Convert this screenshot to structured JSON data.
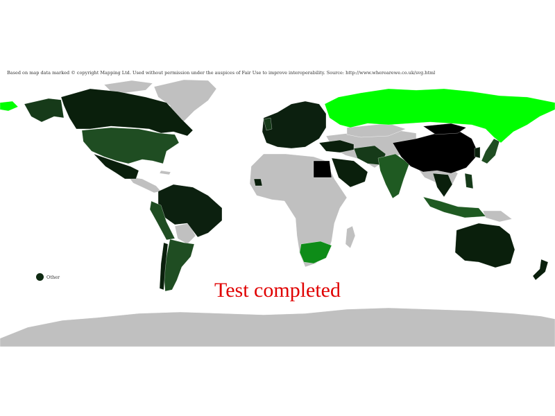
{
  "attribution": "Based on map data marked © copyright Mapping Ltd. Used without permission under the auspices of Fair Use to improve interoperability. Source: http://www.wherearewe.co.uk/svg.html",
  "legend": {
    "label": "Other"
  },
  "status_text": "Test completed",
  "colors": {
    "background": "#ffffff",
    "no_data": "#c0c0c0",
    "highest": "#00ff00",
    "high": "#0e8c18",
    "mid": "#1f5a22",
    "low": "#163a19",
    "lowest": "#000000",
    "legend_other": "#0f2a12",
    "status_text": "#e00000"
  },
  "regions": [
    {
      "name": "Russia",
      "level": "highest"
    },
    {
      "name": "Canada",
      "level": "low"
    },
    {
      "name": "United States",
      "level": "mid"
    },
    {
      "name": "Mexico",
      "level": "low"
    },
    {
      "name": "Brazil",
      "level": "low"
    },
    {
      "name": "Argentina",
      "level": "mid"
    },
    {
      "name": "China",
      "level": "lowest"
    },
    {
      "name": "India",
      "level": "mid"
    },
    {
      "name": "South Africa",
      "level": "high"
    },
    {
      "name": "Australia",
      "level": "low"
    },
    {
      "name": "Japan",
      "level": "mid"
    },
    {
      "name": "Egypt",
      "level": "lowest"
    },
    {
      "name": "Saudi Arabia",
      "level": "low"
    }
  ]
}
